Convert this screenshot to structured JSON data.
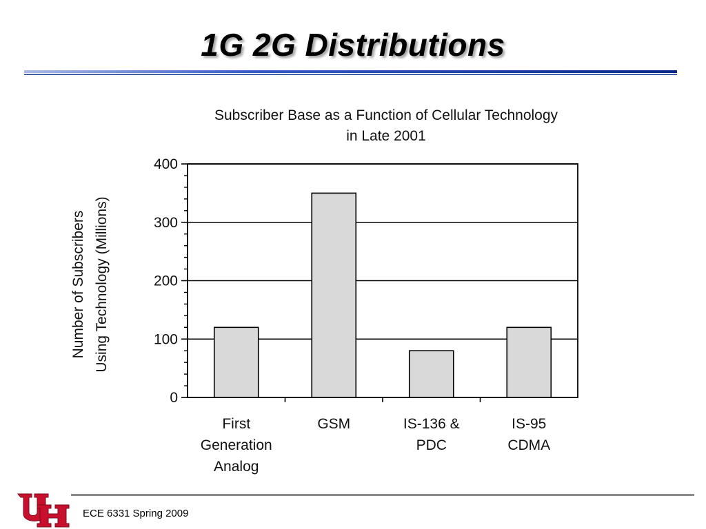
{
  "slide": {
    "title": "1G 2G Distributions",
    "footer": "ECE 6331 Spring 2009",
    "logo_icon": "uh-logo-icon",
    "accent_color": "#1f3f99",
    "logo_color": "#c8102e"
  },
  "chart_data": {
    "type": "bar",
    "title": "Subscriber Base as a Function of Cellular Technology",
    "subtitle": "in Late 2001",
    "ylabel_line1": "Number of Subscribers",
    "ylabel_line2": "Using Technology (Millions)",
    "xlabel": "",
    "categories": [
      [
        "First",
        "Generation",
        "Analog"
      ],
      [
        "GSM"
      ],
      [
        "IS-136 &",
        "PDC"
      ],
      [
        "IS-95",
        "CDMA"
      ]
    ],
    "values": [
      120,
      350,
      80,
      120
    ],
    "ylim": [
      0,
      400
    ],
    "yticks": [
      0,
      100,
      200,
      300,
      400
    ],
    "grid": true,
    "bar_color": "#d9d9d9"
  }
}
